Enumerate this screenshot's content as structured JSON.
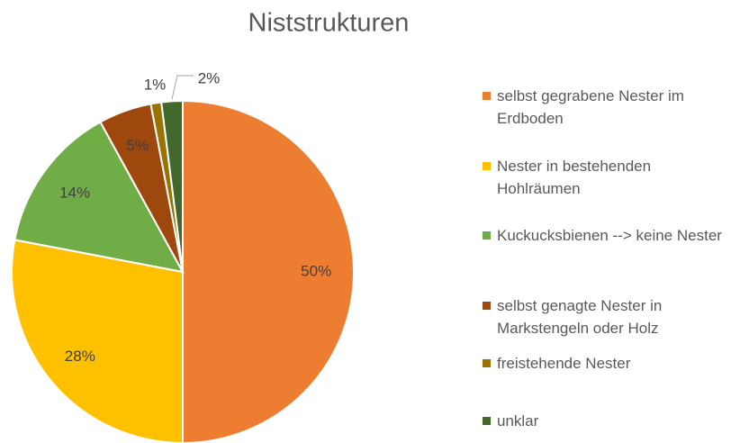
{
  "chart_data": {
    "type": "pie",
    "title": "Niststrukturen",
    "categories": [
      "selbst gegrabene Nester im Erdboden",
      "Nester in bestehenden Hohlräumen",
      "Kuckucksbienen --> keine Nester",
      "selbst genagte Nester in Markstengeln oder Holz",
      "freistehende Nester",
      "unklar"
    ],
    "values": [
      50,
      28,
      14,
      5,
      1,
      2
    ],
    "value_labels": [
      "50%",
      "28%",
      "14%",
      "5%",
      "1%",
      "2%"
    ],
    "colors": [
      "#ed7d31",
      "#ffc000",
      "#70ad47",
      "#9e480e",
      "#997300",
      "#43682b"
    ],
    "legend": "right"
  }
}
